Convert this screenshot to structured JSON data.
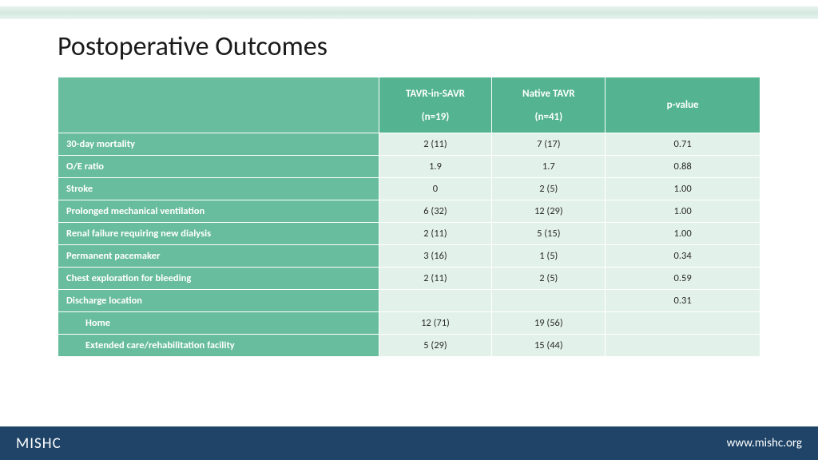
{
  "title": "Postoperative Outcomes",
  "columns": {
    "c1_top": "TAVR-in-SAVR",
    "c1_sub": "(n=19)",
    "c2_top": "Native TAVR",
    "c2_sub": "(n=41)",
    "c3": "p-value"
  },
  "rows": [
    {
      "label": "30-day mortality",
      "indent": false,
      "v1": "2 (11)",
      "v2": "7 (17)",
      "p": "0.71"
    },
    {
      "label": "O/E ratio",
      "indent": false,
      "v1": "1.9",
      "v2": "1.7",
      "p": "0.88"
    },
    {
      "label": "Stroke",
      "indent": false,
      "v1": "0",
      "v2": "2 (5)",
      "p": "1.00"
    },
    {
      "label": "Prolonged mechanical ventilation",
      "indent": false,
      "v1": "6 (32)",
      "v2": "12 (29)",
      "p": "1.00"
    },
    {
      "label": "Renal failure requiring new dialysis",
      "indent": false,
      "v1": "2 (11)",
      "v2": "5 (15)",
      "p": "1.00"
    },
    {
      "label": "Permanent pacemaker",
      "indent": false,
      "v1": "3 (16)",
      "v2": "1 (5)",
      "p": "0.34"
    },
    {
      "label": "Chest exploration for bleeding",
      "indent": false,
      "v1": "2 (11)",
      "v2": "2 (5)",
      "p": "0.59"
    },
    {
      "label": "Discharge location",
      "indent": false,
      "v1": "",
      "v2": "",
      "p": "0.31"
    },
    {
      "label": "Home",
      "indent": true,
      "v1": "12 (71)",
      "v2": "19 (56)",
      "p": ""
    },
    {
      "label": "Extended care/rehabilitation facility",
      "indent": true,
      "v1": "5 (29)",
      "v2": "15 (44)",
      "p": ""
    }
  ],
  "footer": {
    "logo": "MISHC",
    "url": "www.mishc.org"
  },
  "colors": {
    "header_bg": "#54b491",
    "label_bg": "#68bd9e",
    "cell_bg": "#e3f1eb",
    "footer_bg": "#1f4468",
    "band_bg": "#d5e9e0"
  }
}
